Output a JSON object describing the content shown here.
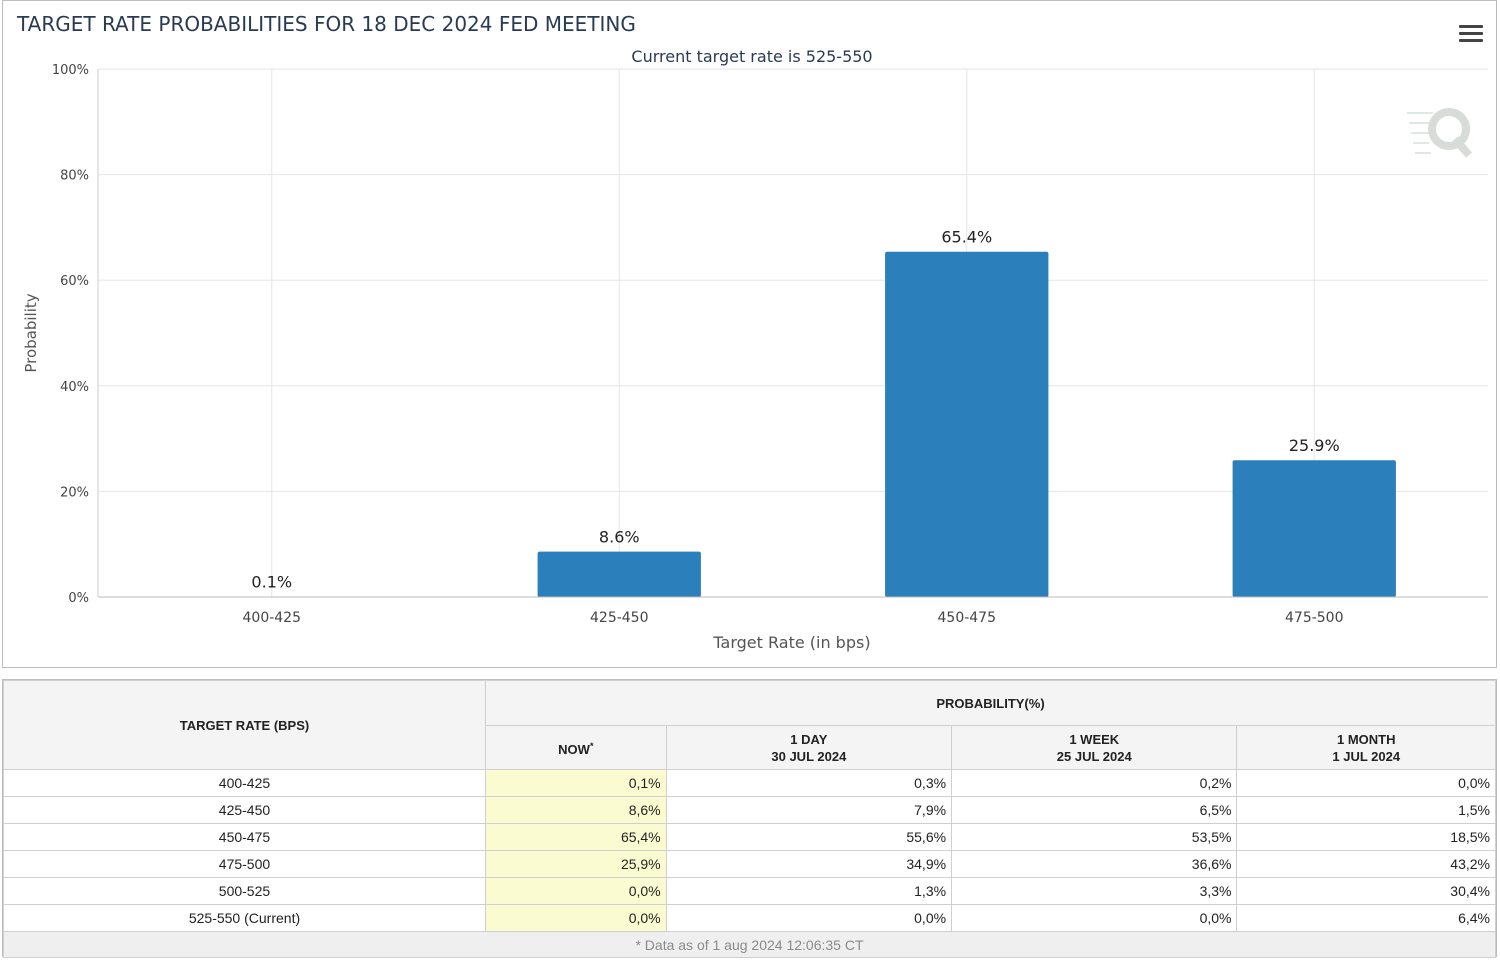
{
  "chart_data": {
    "type": "bar",
    "title": "TARGET RATE PROBABILITIES FOR 18 DEC 2024 FED MEETING",
    "subtitle": "Current target rate is 525-550",
    "xlabel": "Target Rate (in bps)",
    "ylabel": "Probability",
    "categories": [
      "400-425",
      "425-450",
      "450-475",
      "475-500"
    ],
    "values": [
      0.1,
      8.6,
      65.4,
      25.9
    ],
    "data_labels": [
      "0.1%",
      "8.6%",
      "65.4%",
      "25.9%"
    ],
    "ylim": [
      0,
      100
    ],
    "yticks": [
      0,
      20,
      40,
      60,
      80,
      100
    ],
    "ytick_labels": [
      "0%",
      "20%",
      "40%",
      "60%",
      "80%",
      "100%"
    ],
    "grid": true,
    "bar_color": "#2b7fba"
  },
  "icons": {
    "menu": "hamburger-menu-icon",
    "logo": "q-logo-icon"
  },
  "table": {
    "target_header": "TARGET RATE (BPS)",
    "probability_header": "PROBABILITY(%)",
    "columns": [
      {
        "label": "NOW",
        "sub": "",
        "mark": "*"
      },
      {
        "label": "1 DAY",
        "sub": "30 JUL 2024"
      },
      {
        "label": "1 WEEK",
        "sub": "25 JUL 2024"
      },
      {
        "label": "1 MONTH",
        "sub": "1 JUL 2024"
      }
    ],
    "rows": [
      {
        "rate": "400-425",
        "now": "0,1%",
        "day": "0,3%",
        "week": "0,2%",
        "month": "0,0%"
      },
      {
        "rate": "425-450",
        "now": "8,6%",
        "day": "7,9%",
        "week": "6,5%",
        "month": "1,5%"
      },
      {
        "rate": "450-475",
        "now": "65,4%",
        "day": "55,6%",
        "week": "53,5%",
        "month": "18,5%"
      },
      {
        "rate": "475-500",
        "now": "25,9%",
        "day": "34,9%",
        "week": "36,6%",
        "month": "43,2%"
      },
      {
        "rate": "500-525",
        "now": "0,0%",
        "day": "1,3%",
        "week": "3,3%",
        "month": "30,4%"
      },
      {
        "rate": "525-550 (Current)",
        "now": "0,0%",
        "day": "0,0%",
        "week": "0,0%",
        "month": "6,4%"
      }
    ],
    "footnote": "* Data as of 1 aug 2024 12:06:35 CT",
    "now_highlight_color": "#fbfbd2"
  }
}
